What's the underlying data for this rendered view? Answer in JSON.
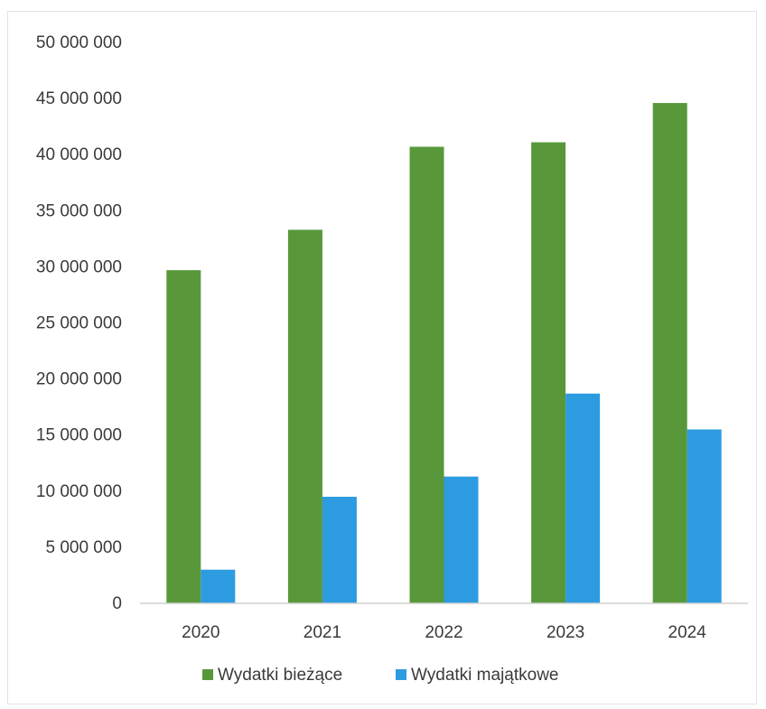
{
  "chart_data": {
    "type": "bar",
    "categories": [
      "2020",
      "2021",
      "2022",
      "2023",
      "2024"
    ],
    "series": [
      {
        "name": "Wydatki bieżące",
        "values": [
          29700000,
          33300000,
          40700000,
          41100000,
          44600000
        ],
        "color": "#58983a"
      },
      {
        "name": "Wydatki majątkowe",
        "values": [
          3000000,
          9500000,
          11300000,
          18700000,
          15500000
        ],
        "color": "#2d9be0"
      }
    ],
    "ylim": [
      0,
      50000000
    ],
    "yticks": [
      0,
      5000000,
      10000000,
      15000000,
      20000000,
      25000000,
      30000000,
      35000000,
      40000000,
      45000000,
      50000000
    ],
    "ytick_labels": [
      "0",
      "5 000 000",
      "10 000 000",
      "15 000 000",
      "20 000 000",
      "25 000 000",
      "30 000 000",
      "35 000 000",
      "40 000 000",
      "45 000 000",
      "50 000 000"
    ],
    "grid": false,
    "legend": "bottom",
    "title": "",
    "xlabel": "",
    "ylabel": ""
  }
}
